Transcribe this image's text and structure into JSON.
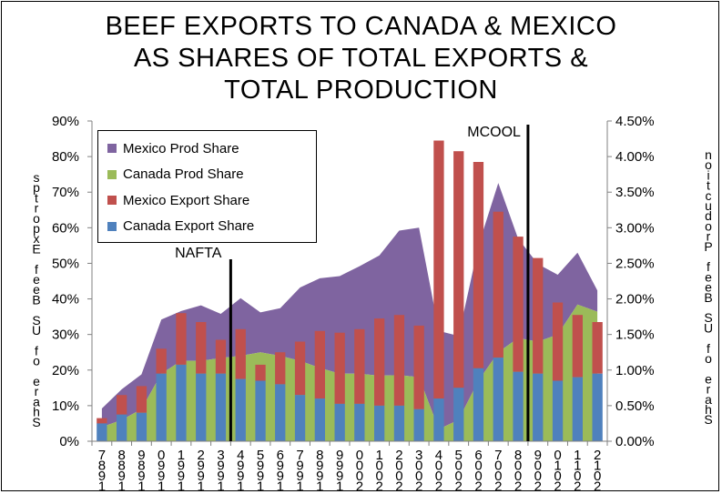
{
  "title": "BEEF EXPORTS TO CANADA & MEXICO\nAS SHARES OF TOTAL EXPORTS &\nTOTAL PRODUCTION",
  "chart_data": {
    "type": "bar",
    "title": "BEEF EXPORTS TO CANADA & MEXICO AS SHARES OF TOTAL EXPORTS & TOTAL PRODUCTION",
    "categories": [
      "1987",
      "1988",
      "1989",
      "1990",
      "1991",
      "1992",
      "1993",
      "1994",
      "1995",
      "1996",
      "1997",
      "1998",
      "1999",
      "2000",
      "2001",
      "2002",
      "2003",
      "2004",
      "2005",
      "2006",
      "2007",
      "2008",
      "2009",
      "2010",
      "2011",
      "2012"
    ],
    "x_tick_labels": [
      "7\n8\n9\n1",
      "8\n8\n9\n1",
      "9\n8\n9\n1",
      "0\n9\n9\n1",
      "1\n9\n9\n1",
      "2\n9\n9\n1",
      "3\n9\n9\n1",
      "4\n9\n9\n1",
      "5\n9\n9\n1",
      "6\n9\n9\n1",
      "7\n9\n9\n1",
      "8\n9\n9\n1",
      "9\n9\n9\n1",
      "0\n0\n0\n2",
      "1\n0\n0\n2",
      "2\n0\n0\n2",
      "3\n0\n0\n2",
      "4\n0\n0\n2",
      "5\n0\n0\n2",
      "6\n0\n0\n2",
      "7\n0\n0\n2",
      "8\n0\n0\n2",
      "9\n0\n0\n2",
      "0\n1\n0\n2",
      "1\n1\n0\n2",
      "2\n1\n0\n2"
    ],
    "y_left": {
      "label": "sptropxE feeB SU fo erahS",
      "min": 0,
      "max": 90,
      "step": 10,
      "tick_labels": [
        "0%",
        "10%",
        "20%",
        "30%",
        "40%",
        "50%",
        "60%",
        "70%",
        "80%",
        "90%"
      ]
    },
    "y_right": {
      "label": "noitcudorP feeB SU fo erahS",
      "min": 0,
      "max": 4.5,
      "step": 0.5,
      "tick_labels": [
        "0.00%",
        "0.50%",
        "1.00%",
        "1.50%",
        "2.00%",
        "2.50%",
        "3.00%",
        "3.50%",
        "4.00%",
        "4.50%"
      ]
    },
    "series": [
      {
        "name": "Mexico Prod Share",
        "kind": "area",
        "axis": "right",
        "stacked_on": "Canada Prod Share",
        "color": "#7f64a0",
        "values": [
          0.26,
          0.43,
          0.49,
          0.76,
          0.7,
          0.78,
          0.62,
          0.81,
          0.56,
          0.67,
          1.03,
          1.26,
          1.37,
          1.51,
          1.69,
          2.03,
          2.1,
          1.38,
          1.18,
          1.9,
          2.38,
          1.4,
          1.09,
          0.84,
          0.73,
          0.3
        ]
      },
      {
        "name": "Canada Prod Share",
        "kind": "area",
        "axis": "right",
        "color": "#9bbb59",
        "values": [
          0.2,
          0.3,
          0.45,
          0.95,
          1.13,
          1.13,
          1.17,
          1.2,
          1.25,
          1.2,
          1.13,
          1.03,
          0.95,
          0.95,
          0.92,
          0.93,
          0.9,
          0.17,
          0.3,
          0.85,
          1.25,
          1.45,
          1.4,
          1.5,
          1.92,
          1.82
        ]
      },
      {
        "name": "Mexico Export Share",
        "kind": "bar",
        "axis": "left",
        "stacked_on": "Canada Export Share",
        "color": "#c0504d",
        "values": [
          1.5,
          5.5,
          7.5,
          7.0,
          14.5,
          14.5,
          9.5,
          14.0,
          4.5,
          9.0,
          15.0,
          19.0,
          20.0,
          21.0,
          24.5,
          25.5,
          23.5,
          72.5,
          66.5,
          58.0,
          41.0,
          38.0,
          32.5,
          22.0,
          17.5,
          14.5
        ]
      },
      {
        "name": "Canada Export Share",
        "kind": "bar",
        "axis": "left",
        "color": "#4f81bd",
        "values": [
          5.0,
          7.5,
          8.0,
          19.0,
          21.5,
          19.0,
          19.0,
          17.5,
          17.0,
          16.0,
          13.0,
          12.0,
          10.5,
          10.5,
          10.0,
          10.0,
          9.0,
          12.0,
          15.0,
          20.5,
          23.5,
          19.5,
          19.0,
          17.0,
          18.0,
          19.0
        ]
      }
    ],
    "annotations": [
      {
        "text": "NAFTA",
        "after": "1993",
        "line": true
      },
      {
        "text": "MCOOL",
        "after": "2008",
        "line": true
      }
    ],
    "legend_placement": "top-left",
    "grid": false
  }
}
